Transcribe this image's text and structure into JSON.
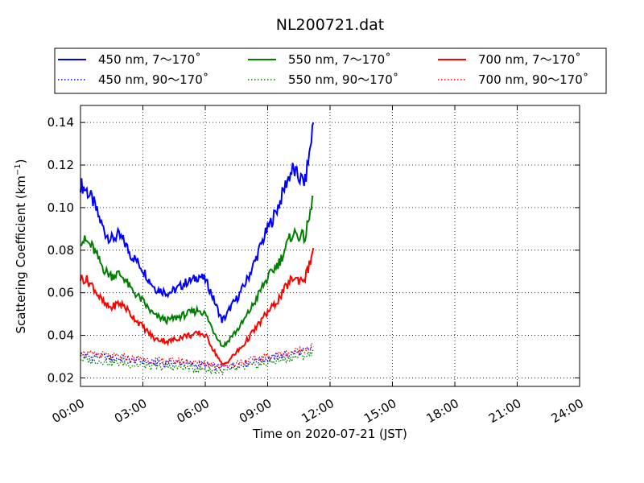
{
  "chart_data": {
    "type": "line",
    "title": "NL200721.dat",
    "xlabel": "Time on 2020-07-21 (JST)",
    "ylabel": "Scattering Coefficient (km",
    "ylabel_unit_exp": "−1",
    "ylabel_close": ")",
    "xlim_hours": [
      0,
      24
    ],
    "ylim": [
      0.016,
      0.148
    ],
    "x_ticks": [
      {
        "hour": 0,
        "label": "00:00"
      },
      {
        "hour": 3,
        "label": "03:00"
      },
      {
        "hour": 6,
        "label": "06:00"
      },
      {
        "hour": 9,
        "label": "09:00"
      },
      {
        "hour": 12,
        "label": "12:00"
      },
      {
        "hour": 15,
        "label": "15:00"
      },
      {
        "hour": 18,
        "label": "18:00"
      },
      {
        "hour": 21,
        "label": "21:00"
      },
      {
        "hour": 24,
        "label": "24:00"
      }
    ],
    "y_ticks": [
      {
        "value": 0.02,
        "label": "0.02"
      },
      {
        "value": 0.04,
        "label": "0.04"
      },
      {
        "value": 0.06,
        "label": "0.06"
      },
      {
        "value": 0.08,
        "label": "0.08"
      },
      {
        "value": 0.1,
        "label": "0.10"
      },
      {
        "value": 0.12,
        "label": "0.12"
      },
      {
        "value": 0.14,
        "label": "0.14"
      }
    ],
    "grid": true,
    "legend_position": "top",
    "series": [
      {
        "name": "450 nm, 7～170˚",
        "color": "#0000ff",
        "style": "solid",
        "x": [
          0,
          0.3,
          0.6,
          0.9,
          1.2,
          1.5,
          1.8,
          2.1,
          2.4,
          2.7,
          3.0,
          3.3,
          3.6,
          3.9,
          4.2,
          4.5,
          4.8,
          5.1,
          5.4,
          5.7,
          6.0,
          6.2,
          6.4,
          6.6,
          6.8,
          7.0,
          7.2,
          7.5,
          7.8,
          8.1,
          8.4,
          8.7,
          9.0,
          9.3,
          9.6,
          9.9,
          10.2,
          10.5,
          10.8,
          11.0,
          11.2
        ],
        "y": [
          0.111,
          0.108,
          0.103,
          0.095,
          0.088,
          0.085,
          0.087,
          0.084,
          0.078,
          0.075,
          0.071,
          0.066,
          0.062,
          0.061,
          0.06,
          0.061,
          0.063,
          0.065,
          0.066,
          0.068,
          0.066,
          0.062,
          0.057,
          0.052,
          0.047,
          0.049,
          0.053,
          0.057,
          0.062,
          0.068,
          0.075,
          0.083,
          0.09,
          0.096,
          0.103,
          0.112,
          0.118,
          0.114,
          0.112,
          0.125,
          0.14
        ]
      },
      {
        "name": "450 nm, 90～170˚",
        "color": "#0000ff",
        "style": "dotted",
        "x": [
          0,
          0.5,
          1.0,
          1.5,
          2.0,
          2.5,
          3.0,
          3.5,
          4.0,
          4.5,
          5.0,
          5.5,
          6.0,
          6.5,
          7.0,
          7.5,
          8.0,
          8.5,
          9.0,
          9.5,
          10.0,
          10.5,
          11.0,
          11.2
        ],
        "y": [
          0.031,
          0.03,
          0.03,
          0.029,
          0.029,
          0.028,
          0.028,
          0.027,
          0.027,
          0.027,
          0.027,
          0.026,
          0.026,
          0.025,
          0.025,
          0.026,
          0.027,
          0.028,
          0.029,
          0.03,
          0.031,
          0.032,
          0.033,
          0.035
        ]
      },
      {
        "name": "550 nm, 7～170˚",
        "color": "#008000",
        "style": "solid",
        "x": [
          0,
          0.3,
          0.6,
          0.9,
          1.2,
          1.5,
          1.8,
          2.1,
          2.4,
          2.7,
          3.0,
          3.3,
          3.6,
          3.9,
          4.2,
          4.5,
          4.8,
          5.1,
          5.4,
          5.7,
          6.0,
          6.2,
          6.4,
          6.6,
          6.8,
          7.0,
          7.2,
          7.5,
          7.8,
          8.1,
          8.4,
          8.7,
          9.0,
          9.3,
          9.6,
          9.9,
          10.2,
          10.5,
          10.8,
          11.0,
          11.2
        ],
        "y": [
          0.085,
          0.084,
          0.081,
          0.075,
          0.07,
          0.068,
          0.069,
          0.067,
          0.062,
          0.059,
          0.056,
          0.052,
          0.049,
          0.048,
          0.047,
          0.048,
          0.049,
          0.05,
          0.051,
          0.052,
          0.05,
          0.046,
          0.042,
          0.039,
          0.035,
          0.036,
          0.039,
          0.042,
          0.046,
          0.051,
          0.056,
          0.062,
          0.067,
          0.071,
          0.075,
          0.082,
          0.088,
          0.087,
          0.086,
          0.095,
          0.105
        ]
      },
      {
        "name": "550 nm, 90～170˚",
        "color": "#008000",
        "style": "dotted",
        "x": [
          0,
          0.5,
          1.0,
          1.5,
          2.0,
          2.5,
          3.0,
          3.5,
          4.0,
          4.5,
          5.0,
          5.5,
          6.0,
          6.5,
          7.0,
          7.5,
          8.0,
          8.5,
          9.0,
          9.5,
          10.0,
          10.5,
          11.0,
          11.2
        ],
        "y": [
          0.029,
          0.028,
          0.028,
          0.027,
          0.027,
          0.026,
          0.026,
          0.025,
          0.025,
          0.025,
          0.025,
          0.024,
          0.024,
          0.023,
          0.023,
          0.024,
          0.025,
          0.026,
          0.027,
          0.028,
          0.029,
          0.03,
          0.031,
          0.033
        ]
      },
      {
        "name": "700 nm, 7～170˚",
        "color": "#ff0000",
        "style": "solid",
        "x": [
          0,
          0.3,
          0.6,
          0.9,
          1.2,
          1.5,
          1.8,
          2.1,
          2.4,
          2.7,
          3.0,
          3.3,
          3.6,
          3.9,
          4.2,
          4.5,
          4.8,
          5.1,
          5.4,
          5.7,
          6.0,
          6.2,
          6.4,
          6.6,
          6.8,
          7.0,
          7.2,
          7.5,
          7.8,
          8.1,
          8.4,
          8.7,
          9.0,
          9.3,
          9.6,
          9.9,
          10.2,
          10.5,
          10.8,
          11.0,
          11.2
        ],
        "y": [
          0.067,
          0.066,
          0.063,
          0.058,
          0.054,
          0.053,
          0.055,
          0.054,
          0.05,
          0.047,
          0.044,
          0.041,
          0.038,
          0.038,
          0.037,
          0.038,
          0.039,
          0.04,
          0.04,
          0.041,
          0.04,
          0.037,
          0.033,
          0.03,
          0.026,
          0.027,
          0.029,
          0.032,
          0.035,
          0.039,
          0.043,
          0.047,
          0.051,
          0.054,
          0.058,
          0.063,
          0.067,
          0.066,
          0.067,
          0.073,
          0.081
        ]
      },
      {
        "name": "700 nm, 90～170˚",
        "color": "#ff0000",
        "style": "dotted",
        "x": [
          0,
          0.5,
          1.0,
          1.5,
          2.0,
          2.5,
          3.0,
          3.5,
          4.0,
          4.5,
          5.0,
          5.5,
          6.0,
          6.5,
          7.0,
          7.5,
          8.0,
          8.5,
          9.0,
          9.5,
          10.0,
          10.5,
          11.0,
          11.2
        ],
        "y": [
          0.032,
          0.031,
          0.031,
          0.03,
          0.03,
          0.029,
          0.029,
          0.028,
          0.028,
          0.028,
          0.028,
          0.027,
          0.027,
          0.026,
          0.026,
          0.027,
          0.028,
          0.029,
          0.03,
          0.031,
          0.032,
          0.033,
          0.034,
          0.036
        ]
      }
    ]
  }
}
